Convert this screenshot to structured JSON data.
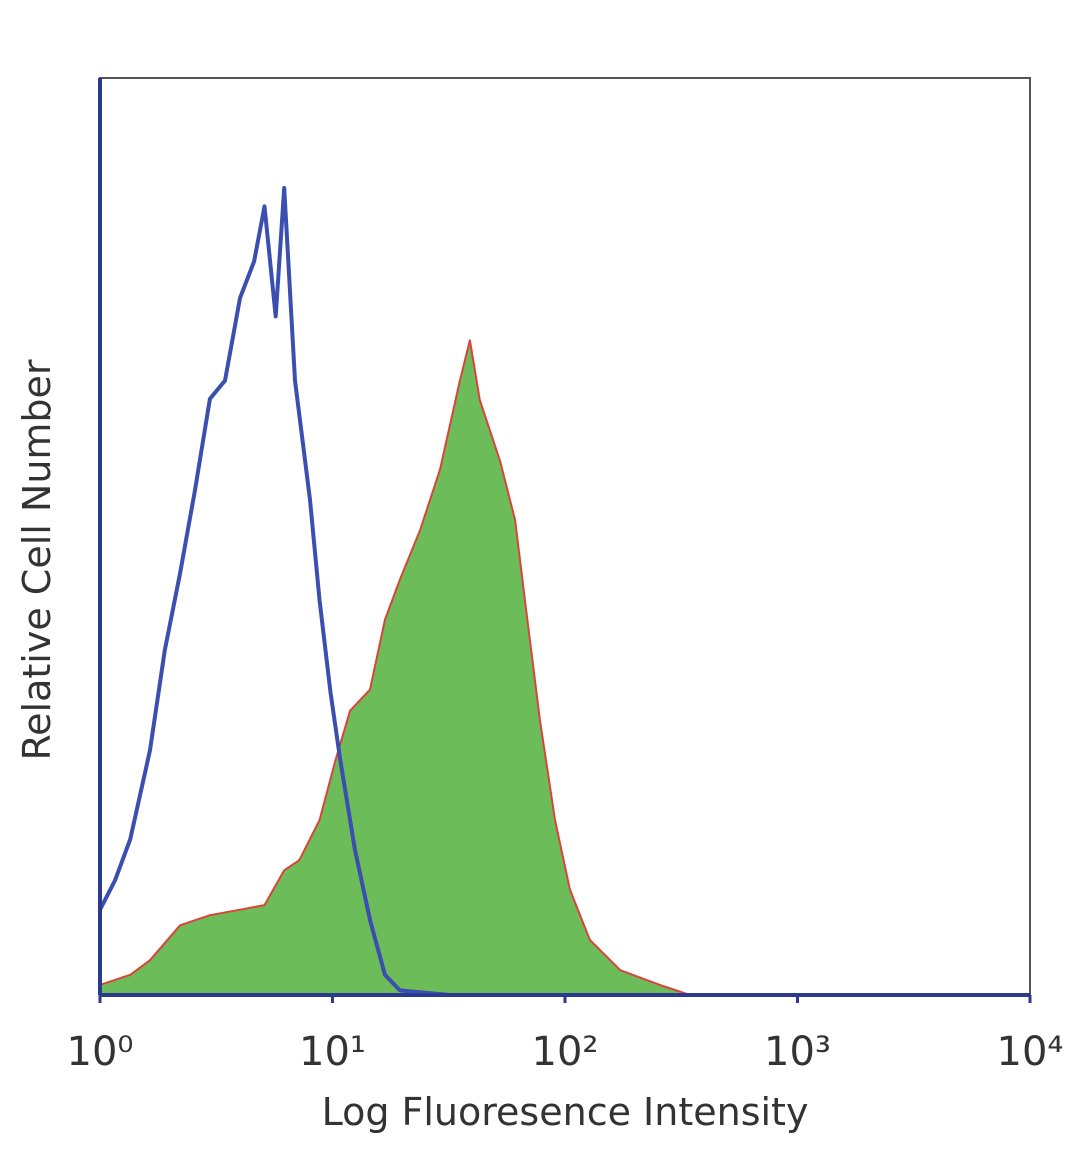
{
  "chart_data": {
    "type": "histogram-overlay",
    "xlabel": "Log Fluoresence Intensity",
    "ylabel": "Relative Cell Number",
    "xscale": "log",
    "xlim": [
      1,
      10000
    ],
    "ylim": [
      0,
      100
    ],
    "xticks": [
      {
        "value": 1,
        "label": "10⁰"
      },
      {
        "value": 10,
        "label": "10¹"
      },
      {
        "value": 100,
        "label": "10²"
      },
      {
        "value": 1000,
        "label": "10³"
      },
      {
        "value": 10000,
        "label": "10⁴"
      }
    ],
    "series": [
      {
        "color": "#d9443a",
        "fill": "#6cbd5a",
        "x": [
          1,
          1.35,
          1.64,
          2.21,
          2.97,
          4.0,
          5.1,
          6.2,
          7.2,
          8.8,
          10.3,
          11.9,
          14.5,
          16.8,
          19.5,
          23.8,
          29,
          35.3,
          39,
          43,
          52.5,
          61,
          67.3,
          78,
          90.6,
          105,
          128,
          173,
          256,
          345
        ],
        "values": [
          1.1,
          2.2,
          3.8,
          7.6,
          8.7,
          9.3,
          9.8,
          13.6,
          14.7,
          19.1,
          25.6,
          31,
          33.3,
          40.9,
          45.3,
          50.7,
          57.3,
          67,
          71.4,
          64.9,
          58.3,
          51.8,
          43,
          30,
          19.1,
          11.5,
          6,
          2.7,
          1.1,
          0
        ]
      },
      {
        "color": "#3a4fb0",
        "fill": "none",
        "x": [
          1,
          1.16,
          1.35,
          1.64,
          1.9,
          2.21,
          2.56,
          2.97,
          3.45,
          4.0,
          4.6,
          5.1,
          5.7,
          6.2,
          6.9,
          8.0,
          8.8,
          9.8,
          10.8,
          12.5,
          14.5,
          16.8,
          19.5,
          32,
          10000
        ],
        "values": [
          9.3,
          12.5,
          17,
          26.7,
          37.6,
          46,
          55,
          65,
          67,
          76,
          80,
          86,
          74,
          88,
          67,
          54,
          43,
          33,
          25.6,
          15.8,
          8.2,
          2.2,
          0.5,
          0,
          0
        ]
      }
    ]
  }
}
